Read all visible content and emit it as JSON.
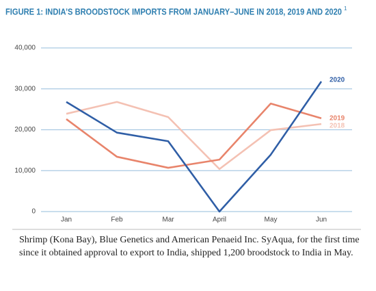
{
  "chart_data": {
    "type": "line",
    "title": "FIGURE 1: INDIA’S BROODSTOCK IMPORTS FROM JANUARY–JUNE IN 2018, 2019 AND 2020",
    "title_note": "1",
    "categories": [
      "Jan",
      "Feb",
      "Mar",
      "April",
      "May",
      "Jun"
    ],
    "series": [
      {
        "name": "2020",
        "color": "#2f5ea6",
        "values": [
          26800,
          19300,
          17200,
          0,
          13900,
          31800
        ]
      },
      {
        "name": "2019",
        "color": "#e8846b",
        "values": [
          22600,
          13400,
          10700,
          12700,
          26400,
          22800
        ]
      },
      {
        "name": "2018",
        "color": "#f4c1b3",
        "values": [
          23900,
          26800,
          23100,
          10400,
          19900,
          21400
        ]
      }
    ],
    "ylim": [
      0,
      40000
    ],
    "yticks": [
      0,
      {
        "value": 10000,
        "label": "10,000"
      },
      {
        "value": 20000,
        "label": "20,000"
      },
      {
        "value": 30000,
        "label": "30,000"
      },
      {
        "value": 40000,
        "label": "40,000"
      }
    ],
    "grid": true
  },
  "caption": "Shrimp (Kona Bay), Blue Genetics and American Penaeid Inc. SyAqua, for the first time since it obtained approval to export to India, shipped 1,200 broodstock to India in May."
}
